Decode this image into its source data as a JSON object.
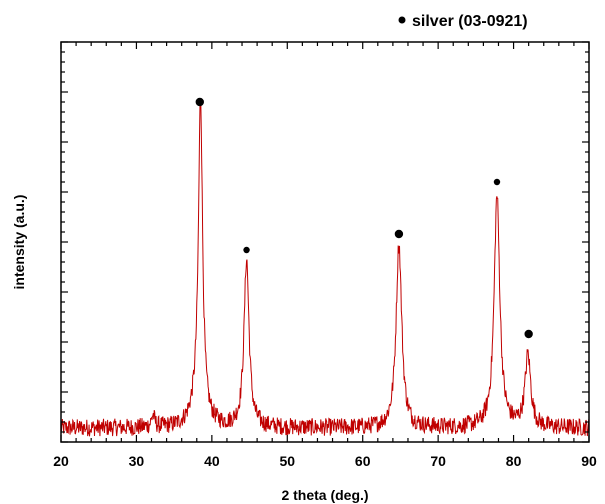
{
  "chart_data": {
    "type": "line",
    "title": "",
    "xlabel": "2 theta (deg.)",
    "ylabel": "intensity (a.u.)",
    "xlim": [
      20,
      90
    ],
    "ylim": [
      0,
      100
    ],
    "xticks": [
      "20",
      "30",
      "40",
      "50",
      "60",
      "70",
      "80",
      "90"
    ],
    "y_tick_labels": false,
    "grid": false,
    "legend": {
      "placement": "top-right",
      "entries": [
        {
          "label": "silver (03-0921)",
          "marker": "circle",
          "color": "#000000"
        }
      ]
    },
    "series": [
      {
        "color": "#c00000",
        "baseline": 3.5,
        "noise_amplitude": 2.2,
        "peaks": [
          {
            "x": 32.2,
            "height": 3,
            "width": 0.25
          },
          {
            "x": 38.2,
            "height": 7,
            "width": 0.9
          },
          {
            "x": 38.5,
            "height": 77,
            "width": 0.32
          },
          {
            "x": 44.6,
            "height": 42,
            "width": 0.4
          },
          {
            "x": 64.8,
            "height": 46,
            "width": 0.45
          },
          {
            "x": 77.8,
            "height": 58,
            "width": 0.45
          },
          {
            "x": 81.9,
            "height": 18,
            "width": 0.45
          }
        ]
      }
    ],
    "markers": [
      {
        "x": 38.4,
        "y": 85,
        "size": "large"
      },
      {
        "x": 44.6,
        "y": 48,
        "size": "small"
      },
      {
        "x": 64.8,
        "y": 52,
        "size": "large"
      },
      {
        "x": 77.8,
        "y": 65,
        "size": "small"
      },
      {
        "x": 82.0,
        "y": 27,
        "size": "large"
      }
    ]
  }
}
